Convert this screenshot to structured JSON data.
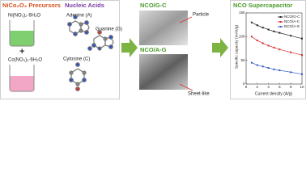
{
  "precursors": {
    "title": "NiCo₂O₄ Precursors",
    "ni_salt": "Ni(NO₃)₂·6H₂O",
    "plus": "+",
    "co_salt": "Co(NO₃)₂·6H₂O"
  },
  "nucleic_acids": {
    "title": "Nucleic Acids",
    "adenine": "Adenine (A)",
    "guanine": "Guanine (G)",
    "cytosine": "Cytosine (C)"
  },
  "products": {
    "gc_title": "NCO/G-C",
    "gc_note": "Particle",
    "ag_title": "NCO/A-G",
    "ag_note": "Sheet-like"
  },
  "chart_data": {
    "type": "line",
    "title": "NCO Supercapacitor",
    "x_label": "Current density (A/g)",
    "y_label": "Specific capacity (mAh/g)",
    "x": [
      1,
      2,
      3,
      4,
      5,
      6,
      8,
      10
    ],
    "series": [
      {
        "name": "NCO/G-C",
        "color": "#222222",
        "values": [
          130,
          124,
          119,
          115,
          111,
          108,
          102,
          96
        ]
      },
      {
        "name": "NCO/A-C",
        "color": "#d62728",
        "values": [
          100,
          92,
          86,
          81,
          77,
          73,
          67,
          61
        ]
      },
      {
        "name": "NCO/A-G",
        "color": "#2a55c0",
        "values": [
          45,
          40,
          37,
          34,
          31,
          29,
          25,
          21
        ]
      }
    ],
    "xlim": [
      0,
      10
    ],
    "xticks": [
      0,
      2,
      4,
      6,
      8,
      10
    ],
    "ylim": [
      0,
      150
    ],
    "yticks": [
      0,
      50,
      100,
      150
    ]
  }
}
